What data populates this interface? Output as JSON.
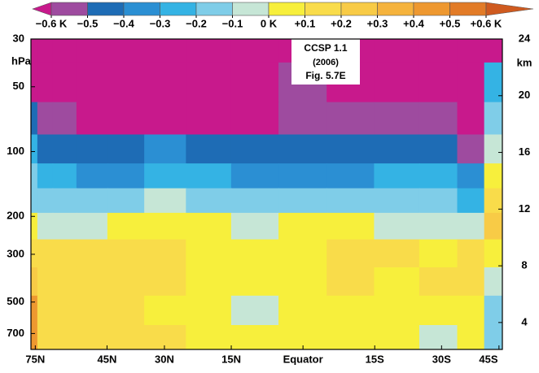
{
  "chart_data": {
    "type": "contour",
    "x": [
      77,
      70,
      60,
      50,
      40,
      30,
      20,
      10,
      0,
      -10,
      -20,
      -30,
      -38,
      -44
    ],
    "y": [
      30,
      50,
      70,
      100,
      130,
      170,
      220,
      300,
      400,
      550,
      750
    ],
    "z": [
      [
        -0.8,
        -0.8,
        -0.8,
        -0.8,
        -0.8,
        -0.8,
        -0.8,
        -0.8,
        -0.8,
        -0.8,
        -0.8,
        -0.8,
        -0.8,
        -0.8
      ],
      [
        -0.8,
        -0.8,
        -0.8,
        -0.8,
        -0.8,
        -0.8,
        -0.8,
        -0.8,
        -0.55,
        -0.8,
        -0.8,
        -0.8,
        -0.8,
        -0.3
      ],
      [
        -0.45,
        -0.55,
        -0.55,
        -0.65,
        -0.7,
        -0.7,
        -0.65,
        -0.65,
        -0.55,
        -0.6,
        -0.55,
        -0.6,
        -0.7,
        -0.2
      ],
      [
        -0.3,
        -0.45,
        -0.45,
        -0.45,
        -0.45,
        -0.4,
        -0.45,
        -0.5,
        -0.5,
        -0.45,
        -0.45,
        -0.45,
        -0.55,
        -0.1
      ],
      [
        -0.2,
        -0.3,
        -0.3,
        -0.35,
        -0.35,
        -0.3,
        -0.3,
        -0.35,
        -0.35,
        -0.35,
        -0.3,
        -0.3,
        -0.4,
        0.05
      ],
      [
        -0.15,
        -0.15,
        -0.2,
        -0.2,
        -0.15,
        -0.1,
        -0.15,
        -0.2,
        -0.15,
        -0.15,
        -0.15,
        -0.15,
        -0.3,
        0.15
      ],
      [
        0.05,
        -0.05,
        -0.05,
        -0.05,
        0.05,
        0.05,
        0.05,
        -0.05,
        0.05,
        0.05,
        -0.05,
        -0.05,
        -0.1,
        0.25
      ],
      [
        0.15,
        0.15,
        0.15,
        0.15,
        0.15,
        0.15,
        0.05,
        0.05,
        0.05,
        0.15,
        0.15,
        0.05,
        0.15,
        0.05
      ],
      [
        0.25,
        0.15,
        0.15,
        0.15,
        0.15,
        0.15,
        0.05,
        0.05,
        0.05,
        0.15,
        0.05,
        0.15,
        0.15,
        -0.05
      ],
      [
        0.45,
        0.15,
        0.15,
        0.15,
        0.15,
        0.05,
        0.05,
        -0.05,
        0.05,
        0.05,
        0.05,
        0.05,
        0.05,
        -0.15
      ],
      [
        0.45,
        0.15,
        0.15,
        0.15,
        0.15,
        0.15,
        0.05,
        0.05,
        0.05,
        0.05,
        0.05,
        -0.05,
        0.05,
        -0.15
      ]
    ],
    "xscale": "sin",
    "xlim": [
      79,
      -46
    ],
    "xticks": [
      {
        "value": 75,
        "label": "75N"
      },
      {
        "value": 45,
        "label": "45N"
      },
      {
        "value": 30,
        "label": "30N"
      },
      {
        "value": 15,
        "label": "15N"
      },
      {
        "value": 0,
        "label": "Equator"
      },
      {
        "value": -15,
        "label": "15S"
      },
      {
        "value": -30,
        "label": "30S"
      },
      {
        "value": -45,
        "label": "45S"
      }
    ],
    "yscale": "log",
    "ylim": [
      30,
      830
    ],
    "yticks": [
      30,
      50,
      100,
      200,
      300,
      500,
      700
    ],
    "ylabel": "hPa",
    "y2lim": [
      2.1,
      24
    ],
    "y2ticks": [
      4,
      8,
      12,
      16,
      20,
      24
    ],
    "y2label": "km",
    "annotation": [
      "CCSP 1.1",
      "(2006)",
      "Fig. 5.7E"
    ],
    "colorbar": {
      "ticks": [
        {
          "value": -0.6,
          "label": "−0.6 K"
        },
        {
          "value": -0.5,
          "label": "−0.5"
        },
        {
          "value": -0.4,
          "label": "−0.4"
        },
        {
          "value": -0.3,
          "label": "−0.3"
        },
        {
          "value": -0.2,
          "label": "−0.2"
        },
        {
          "value": -0.1,
          "label": "−0.1"
        },
        {
          "value": 0,
          "label": "0 K"
        },
        {
          "value": 0.1,
          "label": "+0.1"
        },
        {
          "value": 0.2,
          "label": "+0.2"
        },
        {
          "value": 0.3,
          "label": "+0.3"
        },
        {
          "value": 0.4,
          "label": "+0.4"
        },
        {
          "value": 0.5,
          "label": "+0.5"
        },
        {
          "value": 0.6,
          "label": "+0.6 K"
        }
      ],
      "colors": [
        "#c8198c",
        "#9e4b9f",
        "#1e6cb5",
        "#2b8fd3",
        "#34b3e4",
        "#7fcde8",
        "#c6e6d6",
        "#f7ef3c",
        "#f9dc4a",
        "#f8cb46",
        "#f5b33d",
        "#ee9830",
        "#e27b27",
        "#cf5a1f"
      ]
    }
  }
}
